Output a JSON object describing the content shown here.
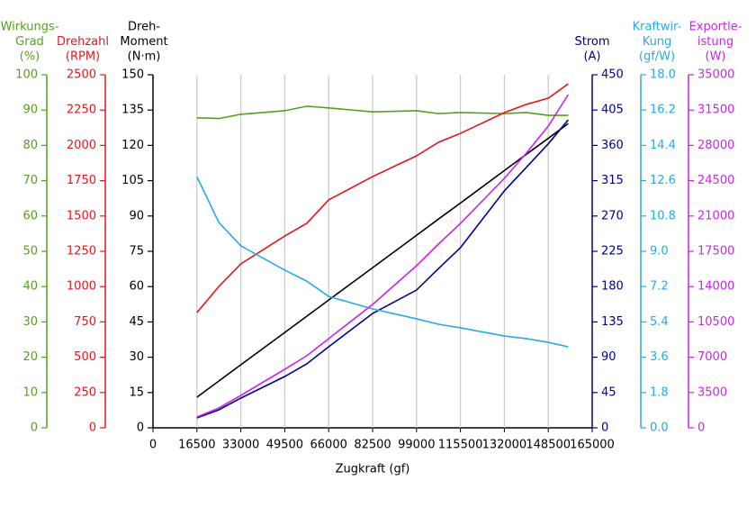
{
  "chart_data": {
    "type": "line",
    "x_label": "Zugkraft (gf)",
    "x": [
      16500,
      24750,
      33000,
      49500,
      57750,
      66000,
      82500,
      99000,
      107250,
      115500,
      132000,
      140250,
      148500,
      156000
    ],
    "xlim": [
      0,
      165000
    ],
    "xticks": [
      0,
      16500,
      33000,
      49500,
      66000,
      82500,
      99000,
      115500,
      132000,
      148500,
      165000
    ],
    "grid": "x",
    "series": [
      {
        "title": [
          "Wirkungs-",
          "Grad",
          "(%)"
        ],
        "color": "#55a01a",
        "side": "left",
        "ylim": [
          0,
          100
        ],
        "yticks": [
          0,
          10,
          20,
          30,
          40,
          50,
          60,
          70,
          80,
          90,
          100
        ],
        "values": [
          87.8,
          87.6,
          88.8,
          89.8,
          91.1,
          90.6,
          89.5,
          89.8,
          89.0,
          89.3,
          89.0,
          89.3,
          88.5,
          88.5
        ]
      },
      {
        "title": [
          "Drehzahl",
          "(RPM)"
        ],
        "color": "#e8141c",
        "side": "left",
        "ylim": [
          0,
          2500
        ],
        "yticks": [
          0,
          250,
          500,
          750,
          1000,
          1250,
          1500,
          1750,
          2000,
          2250,
          2500
        ],
        "values": [
          816,
          1001,
          1161,
          1358,
          1448,
          1614,
          1779,
          1926,
          2022,
          2085,
          2232,
          2290,
          2334,
          2436
        ]
      },
      {
        "title": [
          "Dreh-",
          "Moment",
          "(N·m)"
        ],
        "color": "#000000",
        "side": "left",
        "ylim": [
          0,
          150
        ],
        "yticks": [
          0,
          15,
          30,
          45,
          60,
          75,
          90,
          105,
          120,
          135,
          150
        ],
        "values": [
          13.0,
          19.9,
          26.8,
          40.5,
          47.4,
          54.3,
          68.0,
          81.8,
          88.7,
          95.5,
          109.3,
          116.2,
          123.0,
          129.3
        ]
      },
      {
        "title": [
          "Strom",
          "(A)"
        ],
        "color": "#00008b",
        "side": "right",
        "ylim": [
          0,
          450
        ],
        "yticks": [
          0,
          45,
          90,
          135,
          180,
          225,
          270,
          315,
          360,
          405,
          450
        ],
        "values": [
          12.6,
          23,
          37.9,
          65.4,
          81.5,
          103.3,
          145.8,
          175.6,
          203,
          229.6,
          302,
          332,
          362,
          392.6
        ]
      },
      {
        "title": [
          "Kraftwir-",
          "Kung",
          "(gf/W)"
        ],
        "color": "#29a8e8",
        "side": "right",
        "ylim": [
          0,
          18
        ],
        "yticks": [
          {
            "value": 0,
            "label": "0.0"
          },
          1.8,
          3.6,
          5.4,
          7.2,
          {
            "value": 9,
            "label": "9.0"
          },
          10.8,
          12.6,
          14.4,
          16.2,
          {
            "value": 18,
            "label": "18.0"
          }
        ],
        "values": [
          12.8,
          10.47,
          9.28,
          8.04,
          7.48,
          6.7,
          6.06,
          5.56,
          5.28,
          5.1,
          4.68,
          4.55,
          4.36,
          4.13
        ]
      },
      {
        "title": [
          "Exportle-",
          "istung",
          "(W)"
        ],
        "color": "#cc22ee",
        "side": "right",
        "ylim": [
          0,
          35000
        ],
        "yticks": [
          0,
          3500,
          7000,
          10500,
          14000,
          17500,
          21000,
          24500,
          28000,
          31500,
          35000
        ],
        "values": [
          1071,
          1964,
          3214,
          5804,
          7143,
          8839,
          12232,
          16071,
          18214,
          20268,
          24732,
          27232,
          29911,
          33036
        ]
      }
    ]
  }
}
